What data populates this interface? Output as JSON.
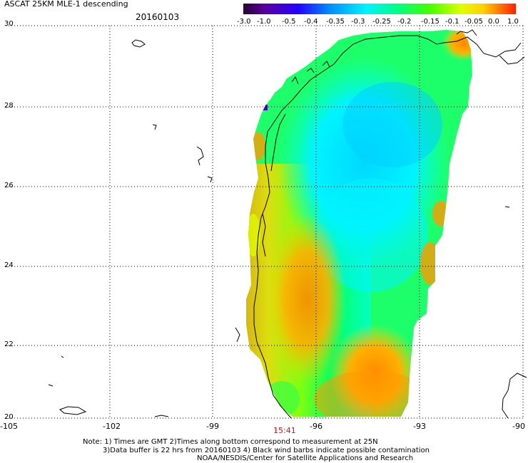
{
  "header": {
    "title": "ASCAT 25KM MLE-1 descending",
    "date": "20160103"
  },
  "colorbar": {
    "labels": [
      "-3.0",
      "-1.0",
      "-0.5",
      "-0.4",
      "-0.35",
      "-0.3",
      "-0.25",
      "-0.2",
      "-0.15",
      "-0.1",
      "-0.05",
      "0.0",
      "1.0"
    ],
    "colors": [
      "#2a0033",
      "#5a00a0",
      "#2400ff",
      "#0058ff",
      "#009dff",
      "#00f2ff",
      "#00ffcf",
      "#00ff5f",
      "#5fff00",
      "#c6ff00",
      "#fffb00",
      "#ff9a00",
      "#ff1f00"
    ]
  },
  "axes": {
    "lat_labels": [
      "30",
      "28",
      "26",
      "24",
      "22",
      "20"
    ],
    "lon_labels": [
      "-105",
      "-102",
      "-99",
      "-96",
      "-93",
      "-90"
    ]
  },
  "time_label": "15:41",
  "notes": {
    "line1": "Note: 1) Times are GMT 2)Times along bottom correspond to measurement at 25N",
    "line2": "3)Data buffer is 22 hrs from 20160103 4) Black wind barbs indicate possible contamination",
    "line3": "NOAA/NESDIS/Center for Satellite Applications and Research"
  }
}
